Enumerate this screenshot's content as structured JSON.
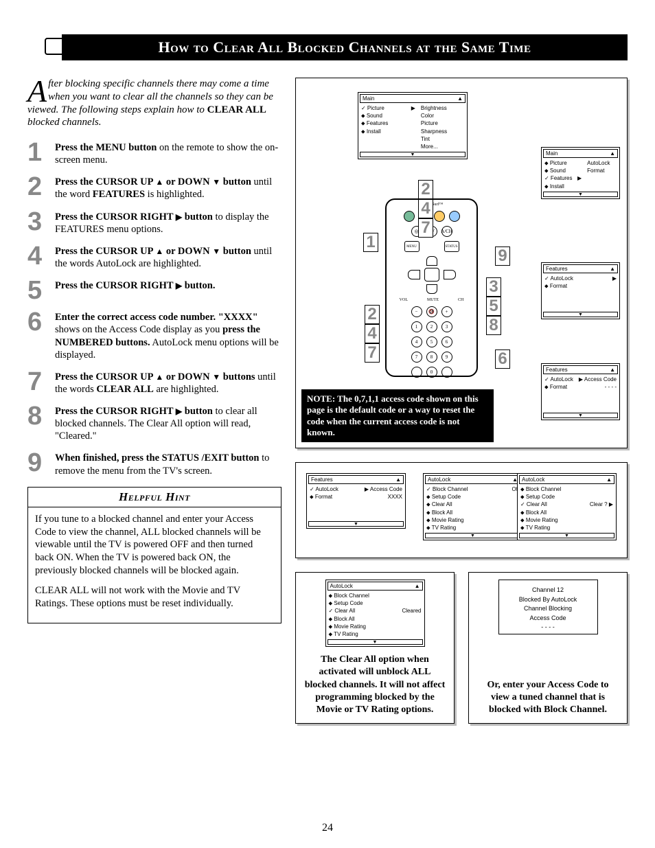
{
  "page_number": "24",
  "title": "How to Clear All Blocked Channels at the Same Time",
  "intro": {
    "dropcap": "A",
    "text": "fter blocking specific channels there may come a time when you want to clear all the channels so they can be viewed. The following steps explain how to ",
    "emph": "CLEAR ALL",
    "tail": " blocked channels."
  },
  "steps": [
    {
      "n": "1",
      "html": "<b>Press the MENU button</b> on the remote to show the on-screen menu."
    },
    {
      "n": "2",
      "html": "<b>Press the CURSOR UP <span class='tri'>▲</span> or DOWN <span class='tri'>▼</span> button</b> until the word <b>FEATURES</b> is highlighted."
    },
    {
      "n": "3",
      "html": "<b>Press the CURSOR RIGHT <span class='tri'>▶</span> button</b> to display the FEATURES menu options."
    },
    {
      "n": "4",
      "html": "<b>Press the CURSOR UP <span class='tri'>▲</span> or DOWN <span class='tri'>▼</span> button</b> until the words AutoLock are highlighted."
    },
    {
      "n": "5",
      "html": "<b>Press the CURSOR RIGHT <span class='tri'>▶</span> button.</b>"
    },
    {
      "n": "6",
      "html": "<b>Enter the correct access code number. \"XXXX\"</b> shows on the Access Code display as you <b>press the NUMBERED buttons.</b> AutoLock menu options will be displayed."
    },
    {
      "n": "7",
      "html": "<b>Press the CURSOR UP <span class='tri'>▲</span> or DOWN <span class='tri'>▼</span> buttons</b> until the words <b>CLEAR ALL</b> are highlighted."
    },
    {
      "n": "8",
      "html": "<b>Press the CURSOR RIGHT <span class='tri'>▶</span> button</b> to clear all blocked channels. The Clear All option will read, \"Cleared.\""
    },
    {
      "n": "9",
      "html": "<b>When finished, press the STATUS /EXIT button</b> to remove the menu from the TV's screen."
    }
  ],
  "hint": {
    "title": "Helpful Hint",
    "p1": "If you tune to a blocked channel and enter your Access Code to view the channel, ALL blocked channels will be viewable until the TV is powered OFF and then turned back ON. When the TV is powered back ON, the previously blocked channels will be blocked again.",
    "p2": "CLEAR ALL will not work with the Movie and TV Ratings. These options must be reset individually."
  },
  "note": "NOTE: The 0,7,1,1 access code shown on this page is the default code or a way to reset the code when the current access code is not known.",
  "caption_left": "The Clear All option when activated will unblock ALL blocked channels. It will not affect programming blocked by the Movie or TV Rating options.",
  "caption_right": "Or, enter your Access Code to view a tuned channel that is blocked with Block Channel.",
  "menus": {
    "main1": {
      "title": "Main",
      "items": [
        "✓ Picture",
        "⬥ Sound",
        "⬥ Features",
        "⬥ Install"
      ],
      "right": [
        "Brightness",
        "Color",
        "Picture",
        "Sharpness",
        "Tint",
        "More..."
      ]
    },
    "main2": {
      "title": "Main",
      "items": [
        "⬥ Picture",
        "⬥ Sound",
        "✓ Features",
        "⬥ Install"
      ],
      "right": [
        "AutoLock",
        "Format"
      ]
    },
    "features1": {
      "title": "Features",
      "items": [
        "✓ AutoLock",
        "⬥ Format"
      ],
      "right": [
        "▶",
        ""
      ]
    },
    "features2": {
      "title": "Features",
      "items": [
        "✓ AutoLock",
        "⬥ Format"
      ],
      "right": [
        "▶ Access Code",
        "- - - -"
      ]
    },
    "features3": {
      "title": "Features",
      "items": [
        "✓ AutoLock",
        "⬥ Format"
      ],
      "right": [
        "▶ Access Code",
        "XXXX"
      ]
    },
    "autolock1": {
      "title": "AutoLock",
      "items": [
        "✓ Block Channel",
        "⬥ Setup Code",
        "⬥ Clear All",
        "⬥ Block All",
        "⬥ Movie Rating",
        "⬥ TV Rating"
      ],
      "right": [
        "Off",
        "",
        "",
        "",
        "",
        ""
      ]
    },
    "autolock2": {
      "title": "AutoLock",
      "items": [
        "⬥ Block Channel",
        "⬥ Setup Code",
        "✓ Clear All",
        "⬥ Block All",
        "⬥ Movie Rating",
        "⬥ TV Rating"
      ],
      "right": [
        "",
        "",
        "Clear ? ▶",
        "",
        "",
        ""
      ]
    },
    "autolock3": {
      "title": "AutoLock",
      "items": [
        "⬥ Block Channel",
        "⬥ Setup Code",
        "✓ Clear All",
        "⬥ Block All",
        "⬥ Movie Rating",
        "⬥ TV Rating"
      ],
      "right": [
        "",
        "",
        "Cleared",
        "",
        "",
        ""
      ]
    },
    "tvscreen": [
      "Channel 12",
      "Blocked By AutoLock",
      "Channel Blocking",
      "Access Code",
      "- - - -"
    ]
  },
  "callouts_left": [
    "2",
    "4",
    "7"
  ],
  "callouts_right_a": [
    "2",
    "4",
    "7"
  ],
  "callouts_right_b": [
    "3",
    "5",
    "8"
  ],
  "callout_1": "1",
  "callout_6": "6",
  "callout_9": "9",
  "colors": {
    "step_num": "#888888",
    "black": "#000000",
    "shadow": "#bbbbbb"
  }
}
